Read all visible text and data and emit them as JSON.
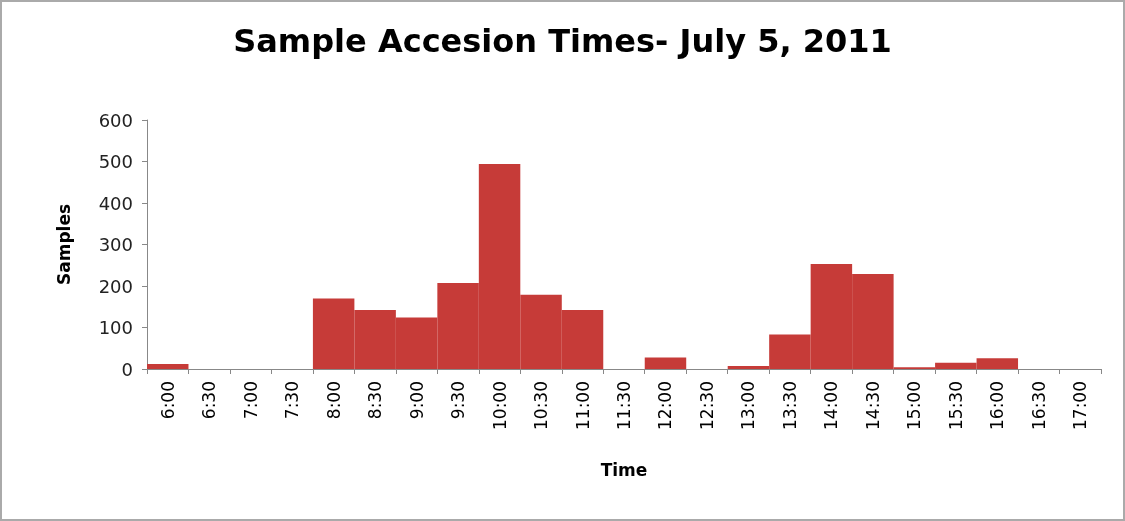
{
  "chart_data": {
    "type": "bar",
    "title": "Sample Accesion Times- July 5, 2011",
    "xlabel": "Time",
    "ylabel": "Samples",
    "categories": [
      "6:00",
      "6:30",
      "7:00",
      "7:30",
      "8:00",
      "8:30",
      "9:00",
      "9:30",
      "10:00",
      "10:30",
      "11:00",
      "11:30",
      "12:00",
      "12:30",
      "13:00",
      "13:30",
      "14:00",
      "14:30",
      "15:00",
      "15:30",
      "16:00",
      "16:30",
      "17:00"
    ],
    "values": [
      12,
      0,
      0,
      0,
      170,
      142,
      124,
      207,
      494,
      179,
      142,
      0,
      28,
      0,
      7,
      83,
      253,
      229,
      4,
      15,
      26,
      0,
      0
    ],
    "color": "#c63b38",
    "ylim": [
      0,
      600
    ],
    "yticks": [
      0,
      100,
      200,
      300,
      400,
      500,
      600
    ],
    "grid": false
  }
}
